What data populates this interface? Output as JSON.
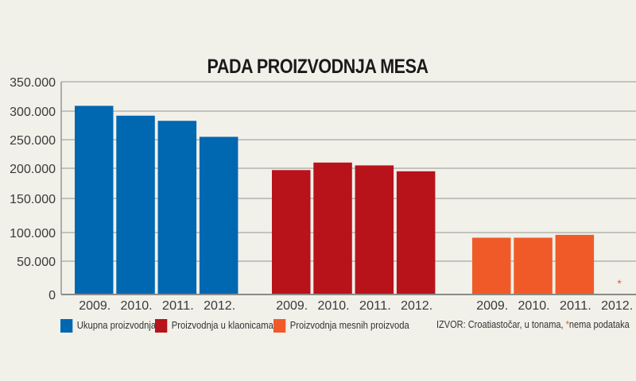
{
  "chart_data": {
    "type": "bar",
    "title": "PADA PROIZVODNJA MESA",
    "xlabel": "",
    "ylabel": "",
    "ylim": [
      0,
      350000
    ],
    "yticks": [
      "0",
      "50.000",
      "100.000",
      "150.000",
      "200.000",
      "250.000",
      "300.000",
      "350.000"
    ],
    "categories": [
      "2009.",
      "2010.",
      "2011.",
      "2012."
    ],
    "grid": true,
    "legend_position": "bottom",
    "series": [
      {
        "name": "Ukupna proizvodnja",
        "color": "#0067b1",
        "values": [
          309000,
          292000,
          283000,
          255000
        ]
      },
      {
        "name": "Proizvodnja u klaonicama",
        "color": "#b8121b",
        "values": [
          197000,
          210000,
          205000,
          195000
        ]
      },
      {
        "name": "Proizvodnja mesnih proizvoda",
        "color": "#f05a28",
        "values": [
          91000,
          91000,
          96000,
          null
        ]
      }
    ],
    "missing_marker": "*",
    "source": {
      "text": "IZVOR: Croatiastočar, u tonama, ",
      "asterisk": "*",
      "note": "nema podataka"
    }
  }
}
